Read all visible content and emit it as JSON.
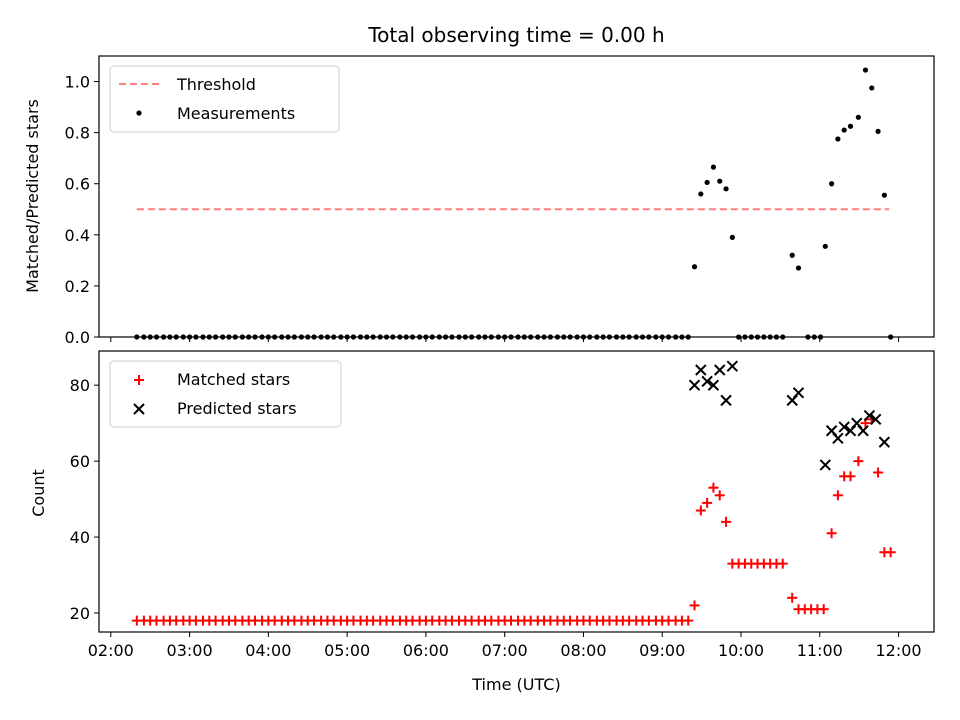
{
  "chart_data": [
    {
      "type": "scatter",
      "title": "Total observing time = 0.00 h",
      "xlabel": "",
      "ylabel": "Matched/Predicted stars",
      "x_unit": "hours (UTC)",
      "xlim": [
        1.85,
        12.45
      ],
      "ylim": [
        0.0,
        1.1
      ],
      "x_ticks": [
        2,
        3,
        4,
        5,
        6,
        7,
        8,
        9,
        10,
        11,
        12
      ],
      "y_ticks": [
        0.0,
        0.2,
        0.4,
        0.6,
        0.8,
        1.0
      ],
      "y_tick_labels": [
        "0.0",
        "0.2",
        "0.4",
        "0.6",
        "0.8",
        "1.0"
      ],
      "show_x_tick_labels": false,
      "grid": false,
      "legend_position": "top-left",
      "threshold": {
        "name": "Threshold",
        "value": 0.5,
        "x_start": 2.33,
        "x_end": 11.88,
        "color": "#ff7f7f"
      },
      "series": [
        {
          "name": "Measurements",
          "color": "#000000",
          "marker": "dot",
          "points": [
            [
              2.33,
              0
            ],
            [
              2.42,
              0
            ],
            [
              2.5,
              0
            ],
            [
              2.58,
              0
            ],
            [
              2.67,
              0
            ],
            [
              2.75,
              0
            ],
            [
              2.83,
              0
            ],
            [
              2.92,
              0
            ],
            [
              3.0,
              0
            ],
            [
              3.08,
              0
            ],
            [
              3.17,
              0
            ],
            [
              3.25,
              0
            ],
            [
              3.33,
              0
            ],
            [
              3.42,
              0
            ],
            [
              3.5,
              0
            ],
            [
              3.58,
              0
            ],
            [
              3.67,
              0
            ],
            [
              3.75,
              0
            ],
            [
              3.83,
              0
            ],
            [
              3.92,
              0
            ],
            [
              4.0,
              0
            ],
            [
              4.08,
              0
            ],
            [
              4.17,
              0
            ],
            [
              4.25,
              0
            ],
            [
              4.33,
              0
            ],
            [
              4.42,
              0
            ],
            [
              4.5,
              0
            ],
            [
              4.58,
              0
            ],
            [
              4.67,
              0
            ],
            [
              4.75,
              0
            ],
            [
              4.83,
              0
            ],
            [
              4.92,
              0
            ],
            [
              5.0,
              0
            ],
            [
              5.08,
              0
            ],
            [
              5.17,
              0
            ],
            [
              5.25,
              0
            ],
            [
              5.33,
              0
            ],
            [
              5.42,
              0
            ],
            [
              5.5,
              0
            ],
            [
              5.58,
              0
            ],
            [
              5.67,
              0
            ],
            [
              5.75,
              0
            ],
            [
              5.83,
              0
            ],
            [
              5.92,
              0
            ],
            [
              6.0,
              0
            ],
            [
              6.08,
              0
            ],
            [
              6.17,
              0
            ],
            [
              6.25,
              0
            ],
            [
              6.33,
              0
            ],
            [
              6.42,
              0
            ],
            [
              6.5,
              0
            ],
            [
              6.58,
              0
            ],
            [
              6.67,
              0
            ],
            [
              6.75,
              0
            ],
            [
              6.83,
              0
            ],
            [
              6.92,
              0
            ],
            [
              7.0,
              0
            ],
            [
              7.08,
              0
            ],
            [
              7.17,
              0
            ],
            [
              7.25,
              0
            ],
            [
              7.33,
              0
            ],
            [
              7.42,
              0
            ],
            [
              7.5,
              0
            ],
            [
              7.58,
              0
            ],
            [
              7.67,
              0
            ],
            [
              7.75,
              0
            ],
            [
              7.83,
              0
            ],
            [
              7.92,
              0
            ],
            [
              8.0,
              0
            ],
            [
              8.08,
              0
            ],
            [
              8.17,
              0
            ],
            [
              8.25,
              0
            ],
            [
              8.33,
              0
            ],
            [
              8.42,
              0
            ],
            [
              8.5,
              0
            ],
            [
              8.58,
              0
            ],
            [
              8.67,
              0
            ],
            [
              8.75,
              0
            ],
            [
              8.83,
              0
            ],
            [
              8.92,
              0
            ],
            [
              9.0,
              0
            ],
            [
              9.08,
              0
            ],
            [
              9.17,
              0
            ],
            [
              9.25,
              0
            ],
            [
              9.33,
              0
            ],
            [
              9.41,
              0.275
            ],
            [
              9.49,
              0.56
            ],
            [
              9.57,
              0.605
            ],
            [
              9.65,
              0.665
            ],
            [
              9.73,
              0.61
            ],
            [
              9.81,
              0.58
            ],
            [
              9.89,
              0.39
            ],
            [
              9.97,
              0
            ],
            [
              10.05,
              0
            ],
            [
              10.13,
              0
            ],
            [
              10.21,
              0
            ],
            [
              10.29,
              0
            ],
            [
              10.37,
              0
            ],
            [
              10.45,
              0
            ],
            [
              10.53,
              0
            ],
            [
              10.65,
              0.32
            ],
            [
              10.73,
              0.27
            ],
            [
              10.85,
              0
            ],
            [
              10.93,
              0
            ],
            [
              11.01,
              0
            ],
            [
              11.07,
              0.355
            ],
            [
              11.15,
              0.6
            ],
            [
              11.23,
              0.775
            ],
            [
              11.31,
              0.81
            ],
            [
              11.39,
              0.825
            ],
            [
              11.49,
              0.86
            ],
            [
              11.58,
              1.045
            ],
            [
              11.66,
              0.975
            ],
            [
              11.74,
              0.805
            ],
            [
              11.82,
              0.555
            ],
            [
              11.9,
              0
            ]
          ]
        }
      ]
    },
    {
      "type": "scatter",
      "title": "",
      "xlabel": "Time (UTC)",
      "ylabel": "Count",
      "x_unit": "hours (UTC)",
      "xlim": [
        1.85,
        12.45
      ],
      "ylim": [
        15,
        89
      ],
      "x_ticks": [
        2,
        3,
        4,
        5,
        6,
        7,
        8,
        9,
        10,
        11,
        12
      ],
      "x_tick_labels": [
        "02:00",
        "03:00",
        "04:00",
        "05:00",
        "06:00",
        "07:00",
        "08:00",
        "09:00",
        "10:00",
        "11:00",
        "12:00"
      ],
      "y_ticks": [
        20,
        40,
        60,
        80
      ],
      "y_tick_labels": [
        "20",
        "40",
        "60",
        "80"
      ],
      "grid": false,
      "legend_position": "top-left",
      "series": [
        {
          "name": "Matched stars",
          "color": "#ff0000",
          "marker": "plus",
          "points": [
            [
              2.33,
              18
            ],
            [
              2.42,
              18
            ],
            [
              2.5,
              18
            ],
            [
              2.58,
              18
            ],
            [
              2.67,
              18
            ],
            [
              2.75,
              18
            ],
            [
              2.83,
              18
            ],
            [
              2.92,
              18
            ],
            [
              3.0,
              18
            ],
            [
              3.08,
              18
            ],
            [
              3.17,
              18
            ],
            [
              3.25,
              18
            ],
            [
              3.33,
              18
            ],
            [
              3.42,
              18
            ],
            [
              3.5,
              18
            ],
            [
              3.58,
              18
            ],
            [
              3.67,
              18
            ],
            [
              3.75,
              18
            ],
            [
              3.83,
              18
            ],
            [
              3.92,
              18
            ],
            [
              4.0,
              18
            ],
            [
              4.08,
              18
            ],
            [
              4.17,
              18
            ],
            [
              4.25,
              18
            ],
            [
              4.33,
              18
            ],
            [
              4.42,
              18
            ],
            [
              4.5,
              18
            ],
            [
              4.58,
              18
            ],
            [
              4.67,
              18
            ],
            [
              4.75,
              18
            ],
            [
              4.83,
              18
            ],
            [
              4.92,
              18
            ],
            [
              5.0,
              18
            ],
            [
              5.08,
              18
            ],
            [
              5.17,
              18
            ],
            [
              5.25,
              18
            ],
            [
              5.33,
              18
            ],
            [
              5.42,
              18
            ],
            [
              5.5,
              18
            ],
            [
              5.58,
              18
            ],
            [
              5.67,
              18
            ],
            [
              5.75,
              18
            ],
            [
              5.83,
              18
            ],
            [
              5.92,
              18
            ],
            [
              6.0,
              18
            ],
            [
              6.08,
              18
            ],
            [
              6.17,
              18
            ],
            [
              6.25,
              18
            ],
            [
              6.33,
              18
            ],
            [
              6.42,
              18
            ],
            [
              6.5,
              18
            ],
            [
              6.58,
              18
            ],
            [
              6.67,
              18
            ],
            [
              6.75,
              18
            ],
            [
              6.83,
              18
            ],
            [
              6.92,
              18
            ],
            [
              7.0,
              18
            ],
            [
              7.08,
              18
            ],
            [
              7.17,
              18
            ],
            [
              7.25,
              18
            ],
            [
              7.33,
              18
            ],
            [
              7.42,
              18
            ],
            [
              7.5,
              18
            ],
            [
              7.58,
              18
            ],
            [
              7.67,
              18
            ],
            [
              7.75,
              18
            ],
            [
              7.83,
              18
            ],
            [
              7.92,
              18
            ],
            [
              8.0,
              18
            ],
            [
              8.08,
              18
            ],
            [
              8.17,
              18
            ],
            [
              8.25,
              18
            ],
            [
              8.33,
              18
            ],
            [
              8.42,
              18
            ],
            [
              8.5,
              18
            ],
            [
              8.58,
              18
            ],
            [
              8.67,
              18
            ],
            [
              8.75,
              18
            ],
            [
              8.83,
              18
            ],
            [
              8.92,
              18
            ],
            [
              9.0,
              18
            ],
            [
              9.08,
              18
            ],
            [
              9.17,
              18
            ],
            [
              9.25,
              18
            ],
            [
              9.33,
              18
            ],
            [
              9.41,
              22
            ],
            [
              9.49,
              47
            ],
            [
              9.57,
              49
            ],
            [
              9.65,
              53
            ],
            [
              9.73,
              51
            ],
            [
              9.81,
              44
            ],
            [
              9.89,
              33
            ],
            [
              9.97,
              33
            ],
            [
              10.05,
              33
            ],
            [
              10.13,
              33
            ],
            [
              10.21,
              33
            ],
            [
              10.29,
              33
            ],
            [
              10.37,
              33
            ],
            [
              10.45,
              33
            ],
            [
              10.53,
              33
            ],
            [
              10.65,
              24
            ],
            [
              10.73,
              21
            ],
            [
              10.81,
              21
            ],
            [
              10.89,
              21
            ],
            [
              10.97,
              21
            ],
            [
              11.05,
              21
            ],
            [
              11.15,
              41
            ],
            [
              11.23,
              51
            ],
            [
              11.31,
              56
            ],
            [
              11.39,
              56
            ],
            [
              11.49,
              60
            ],
            [
              11.58,
              70
            ],
            [
              11.66,
              71
            ],
            [
              11.74,
              57
            ],
            [
              11.82,
              36
            ],
            [
              11.9,
              36
            ]
          ]
        },
        {
          "name": "Predicted stars",
          "color": "#000000",
          "marker": "x",
          "points": [
            [
              9.41,
              80
            ],
            [
              9.49,
              84
            ],
            [
              9.57,
              81
            ],
            [
              9.65,
              80
            ],
            [
              9.73,
              84
            ],
            [
              9.81,
              76
            ],
            [
              9.89,
              85
            ],
            [
              10.65,
              76
            ],
            [
              10.73,
              78
            ],
            [
              11.07,
              59
            ],
            [
              11.15,
              68
            ],
            [
              11.23,
              66
            ],
            [
              11.31,
              69
            ],
            [
              11.39,
              68
            ],
            [
              11.47,
              70
            ],
            [
              11.55,
              68
            ],
            [
              11.63,
              72
            ],
            [
              11.71,
              71
            ],
            [
              11.82,
              65
            ]
          ]
        }
      ]
    }
  ]
}
